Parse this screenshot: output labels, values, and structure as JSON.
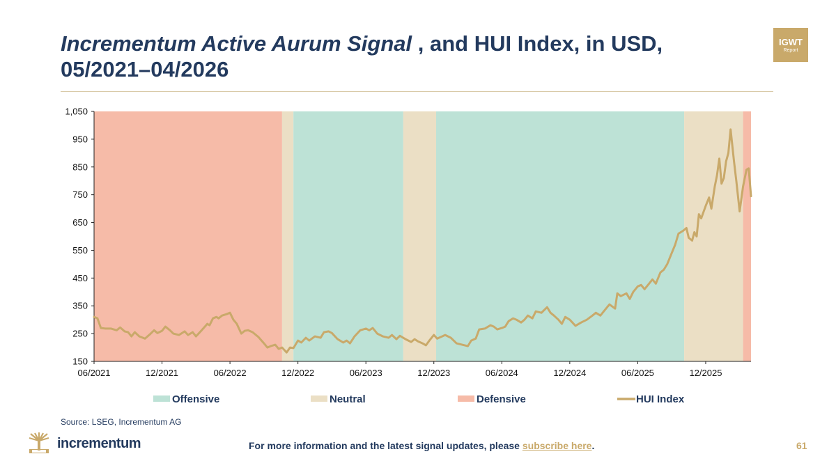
{
  "header": {
    "title_italic": "Incrementum Active Aurum Signal",
    "title_rest": " , and HUI Index, in USD,",
    "title_line2": "05/2021–04/2026",
    "badge_line1": "IGWT",
    "badge_line2": "Report"
  },
  "colors": {
    "offensive": "#bde2d6",
    "neutral": "#ebdfc5",
    "defensive": "#f6bba8",
    "hui": "#c9a96a",
    "text": "#233a5e",
    "gold": "#c9a96a"
  },
  "chart_data": {
    "type": "line",
    "title": "",
    "xlabel": "",
    "ylabel": "",
    "ylim": [
      150,
      1050
    ],
    "yticks": [
      150,
      250,
      350,
      450,
      550,
      650,
      750,
      850,
      950,
      1050
    ],
    "ytick_labels": [
      "150",
      "250",
      "350",
      "450",
      "550",
      "650",
      "750",
      "850",
      "950",
      "1,050"
    ],
    "xlim": [
      "2021-06",
      "2026-04"
    ],
    "xticks": [
      {
        "date": "2021-06",
        "label": "06/2021"
      },
      {
        "date": "2021-12",
        "label": "12/2021"
      },
      {
        "date": "2022-06",
        "label": "06/2022"
      },
      {
        "date": "2022-12",
        "label": "12/2022"
      },
      {
        "date": "2023-06",
        "label": "06/2023"
      },
      {
        "date": "2023-12",
        "label": "12/2023"
      },
      {
        "date": "2024-06",
        "label": "06/2024"
      },
      {
        "date": "2024-12",
        "label": "12/2024"
      },
      {
        "date": "2025-06",
        "label": "06/2025"
      },
      {
        "date": "2025-12",
        "label": "12/2025"
      }
    ],
    "regimes": [
      {
        "from": "2021-06",
        "to": "2022-10.6",
        "signal": "Defensive"
      },
      {
        "from": "2022-10.6",
        "to": "2022-11.6",
        "signal": "Neutral"
      },
      {
        "from": "2022-11.6",
        "to": "2023-09.3",
        "signal": "Offensive"
      },
      {
        "from": "2023-09.3",
        "to": "2023-12.2",
        "signal": "Neutral"
      },
      {
        "from": "2023-12.2",
        "to": "2025-10.1",
        "signal": "Offensive"
      },
      {
        "from": "2025-10.1",
        "to": "2026-03.3",
        "signal": "Neutral"
      },
      {
        "from": "2026-03.3",
        "to": "2026-04",
        "signal": "Defensive"
      }
    ],
    "series": [
      {
        "name": "HUI Index",
        "points": [
          [
            "2021-06",
            310
          ],
          [
            "2021-06.3",
            305
          ],
          [
            "2021-06.6",
            270
          ],
          [
            "2021-07",
            268
          ],
          [
            "2021-07.5",
            268
          ],
          [
            "2021-08",
            262
          ],
          [
            "2021-08.3",
            272
          ],
          [
            "2021-08.7",
            258
          ],
          [
            "2021-09",
            255
          ],
          [
            "2021-09.3",
            240
          ],
          [
            "2021-09.6",
            255
          ],
          [
            "2021-10",
            240
          ],
          [
            "2021-10.5",
            232
          ],
          [
            "2021-11",
            250
          ],
          [
            "2021-11.3",
            262
          ],
          [
            "2021-11.6",
            252
          ],
          [
            "2021-12",
            260
          ],
          [
            "2021-12.3",
            275
          ],
          [
            "2021-12.7",
            262
          ],
          [
            "2022-01",
            250
          ],
          [
            "2022-01.5",
            245
          ],
          [
            "2022-02",
            258
          ],
          [
            "2022-02.3",
            245
          ],
          [
            "2022-02.7",
            255
          ],
          [
            "2022-03",
            240
          ],
          [
            "2022-03.5",
            262
          ],
          [
            "2022-04",
            285
          ],
          [
            "2022-04.2",
            280
          ],
          [
            "2022-04.5",
            305
          ],
          [
            "2022-04.8",
            310
          ],
          [
            "2022-05",
            305
          ],
          [
            "2022-05.3",
            315
          ],
          [
            "2022-05.7",
            320
          ],
          [
            "2022-06",
            325
          ],
          [
            "2022-06.3",
            300
          ],
          [
            "2022-06.6",
            285
          ],
          [
            "2022-07",
            250
          ],
          [
            "2022-07.3",
            260
          ],
          [
            "2022-07.6",
            262
          ],
          [
            "2022-08",
            255
          ],
          [
            "2022-08.5",
            238
          ],
          [
            "2022-09",
            215
          ],
          [
            "2022-09.3",
            200
          ],
          [
            "2022-09.6",
            205
          ],
          [
            "2022-10",
            210
          ],
          [
            "2022-10.3",
            195
          ],
          [
            "2022-10.6",
            200
          ],
          [
            "2022-11",
            182
          ],
          [
            "2022-11.3",
            200
          ],
          [
            "2022-11.6",
            198
          ],
          [
            "2022-12",
            225
          ],
          [
            "2022-12.3",
            218
          ],
          [
            "2022-12.7",
            235
          ],
          [
            "2023-01",
            225
          ],
          [
            "2023-01.5",
            240
          ],
          [
            "2023-02",
            235
          ],
          [
            "2023-02.3",
            255
          ],
          [
            "2023-02.7",
            258
          ],
          [
            "2023-03",
            252
          ],
          [
            "2023-03.5",
            230
          ],
          [
            "2023-04",
            218
          ],
          [
            "2023-04.3",
            225
          ],
          [
            "2023-04.6",
            215
          ],
          [
            "2023-05",
            240
          ],
          [
            "2023-05.5",
            262
          ],
          [
            "2023-06",
            268
          ],
          [
            "2023-06.3",
            262
          ],
          [
            "2023-06.6",
            270
          ],
          [
            "2023-07",
            250
          ],
          [
            "2023-07.5",
            240
          ],
          [
            "2023-08",
            235
          ],
          [
            "2023-08.3",
            245
          ],
          [
            "2023-08.7",
            230
          ],
          [
            "2023-09",
            242
          ],
          [
            "2023-09.5",
            230
          ],
          [
            "2023-10",
            220
          ],
          [
            "2023-10.3",
            230
          ],
          [
            "2023-10.6",
            222
          ],
          [
            "2023-11",
            215
          ],
          [
            "2023-11.3",
            208
          ],
          [
            "2023-11.6",
            225
          ],
          [
            "2023-12",
            245
          ],
          [
            "2023-12.3",
            232
          ],
          [
            "2024-01",
            245
          ],
          [
            "2024-01.5",
            235
          ],
          [
            "2024-02",
            215
          ],
          [
            "2024-02.5",
            210
          ],
          [
            "2024-03",
            205
          ],
          [
            "2024-03.3",
            225
          ],
          [
            "2024-03.7",
            232
          ],
          [
            "2024-04",
            265
          ],
          [
            "2024-04.5",
            268
          ],
          [
            "2024-05",
            280
          ],
          [
            "2024-05.3",
            275
          ],
          [
            "2024-05.6",
            265
          ],
          [
            "2024-06",
            270
          ],
          [
            "2024-06.3",
            275
          ],
          [
            "2024-06.6",
            295
          ],
          [
            "2024-07",
            305
          ],
          [
            "2024-07.3",
            300
          ],
          [
            "2024-07.7",
            290
          ],
          [
            "2024-08",
            300
          ],
          [
            "2024-08.3",
            315
          ],
          [
            "2024-08.7",
            305
          ],
          [
            "2024-09",
            330
          ],
          [
            "2024-09.5",
            325
          ],
          [
            "2024-10",
            345
          ],
          [
            "2024-10.3",
            325
          ],
          [
            "2024-10.6",
            315
          ],
          [
            "2024-11",
            300
          ],
          [
            "2024-11.3",
            285
          ],
          [
            "2024-11.6",
            310
          ],
          [
            "2024-12",
            300
          ],
          [
            "2024-12.5",
            278
          ],
          [
            "2025-01",
            290
          ],
          [
            "2025-01.5",
            300
          ],
          [
            "2025-02",
            315
          ],
          [
            "2025-02.3",
            325
          ],
          [
            "2025-02.7",
            315
          ],
          [
            "2025-03",
            330
          ],
          [
            "2025-03.5",
            355
          ],
          [
            "2025-04",
            340
          ],
          [
            "2025-04.2",
            395
          ],
          [
            "2025-04.5",
            385
          ],
          [
            "2025-05",
            395
          ],
          [
            "2025-05.3",
            375
          ],
          [
            "2025-05.6",
            400
          ],
          [
            "2025-06",
            420
          ],
          [
            "2025-06.3",
            425
          ],
          [
            "2025-06.6",
            410
          ],
          [
            "2025-07",
            430
          ],
          [
            "2025-07.3",
            445
          ],
          [
            "2025-07.6",
            430
          ],
          [
            "2025-08",
            470
          ],
          [
            "2025-08.3",
            480
          ],
          [
            "2025-08.6",
            500
          ],
          [
            "2025-09",
            540
          ],
          [
            "2025-09.3",
            570
          ],
          [
            "2025-09.6",
            610
          ],
          [
            "2025-10",
            620
          ],
          [
            "2025-10.3",
            630
          ],
          [
            "2025-10.5",
            595
          ],
          [
            "2025-10.8",
            585
          ],
          [
            "2025-11",
            615
          ],
          [
            "2025-11.2",
            600
          ],
          [
            "2025-11.4",
            680
          ],
          [
            "2025-11.6",
            665
          ],
          [
            "2025-12",
            710
          ],
          [
            "2025-12.3",
            740
          ],
          [
            "2025-12.5",
            700
          ],
          [
            "2025-12.8",
            780
          ],
          [
            "2026-01",
            820
          ],
          [
            "2026-01.2",
            880
          ],
          [
            "2026-01.4",
            790
          ],
          [
            "2026-01.6",
            810
          ],
          [
            "2026-01.8",
            870
          ],
          [
            "2026-02",
            900
          ],
          [
            "2026-02.2",
            985
          ],
          [
            "2026-02.5",
            870
          ],
          [
            "2026-02.7",
            800
          ],
          [
            "2026-03",
            690
          ],
          [
            "2026-03.3",
            780
          ],
          [
            "2026-03.6",
            840
          ],
          [
            "2026-03.8",
            845
          ],
          [
            "2026-04",
            745
          ]
        ]
      }
    ],
    "legend": [
      {
        "label": "Offensive",
        "kind": "swatch",
        "color": "#bde2d6"
      },
      {
        "label": "Neutral",
        "kind": "swatch",
        "color": "#ebdfc5"
      },
      {
        "label": "Defensive",
        "kind": "swatch",
        "color": "#f6bba8"
      },
      {
        "label": "HUI Index",
        "kind": "line",
        "color": "#c9a96a"
      }
    ],
    "legend_position": "bottom",
    "grid": false
  },
  "footer": {
    "source": "Source: LSEG, Incrementum AG",
    "brand_name": "incrementum",
    "info_text": "For more information and the latest signal updates, please ",
    "link_text": "subscribe here",
    "info_end": ".",
    "page_number": "61"
  }
}
